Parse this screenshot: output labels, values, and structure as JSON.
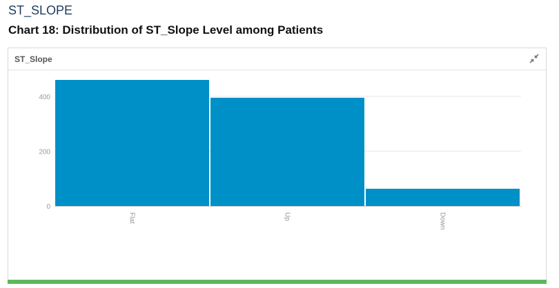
{
  "page": {
    "section_title": "ST_SLOPE",
    "chart_caption": "Chart 18: Distribution of ST_Slope Level among Patients"
  },
  "panel": {
    "title": "ST_Slope",
    "collapse_icon": "collapse-arrows-icon"
  },
  "colors": {
    "bar": "#0090c8",
    "gridline": "#e6e6e6",
    "axis_text": "#999999",
    "status_bar": "#5cb85c"
  },
  "chart_data": {
    "type": "bar",
    "categories": [
      "Flat",
      "Up",
      "Down"
    ],
    "values": [
      460,
      395,
      63
    ],
    "ylim": [
      0,
      460
    ],
    "yticks": [
      0,
      200,
      400
    ],
    "grid": true,
    "legend": "none",
    "title": "",
    "xlabel": "",
    "ylabel": ""
  }
}
